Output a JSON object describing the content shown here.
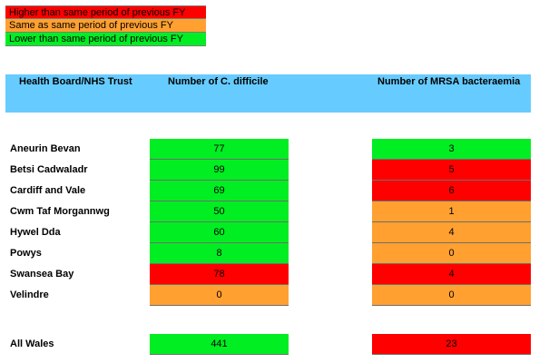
{
  "colors": {
    "red": "#ff0000",
    "orange": "#ffa030",
    "green": "#00ee22",
    "header_blue": "#66ccff"
  },
  "legend": [
    {
      "text": "Higher than same period of previous FY",
      "color": "red"
    },
    {
      "text": "Same as same period of previous FY",
      "color": "orange"
    },
    {
      "text": "Lower than same period of previous FY",
      "color": "green"
    }
  ],
  "table": {
    "headers": {
      "trust": "Health Board/NHS Trust",
      "cdiff": "Number of C. difficile",
      "mrsa": "Number of MRSA bacteraemia"
    },
    "rows": [
      {
        "name": "Aneurin Bevan",
        "cdiff": "77",
        "cdiff_color": "green",
        "mrsa": "3",
        "mrsa_color": "green"
      },
      {
        "name": "Betsi Cadwaladr",
        "cdiff": "99",
        "cdiff_color": "green",
        "mrsa": "5",
        "mrsa_color": "red"
      },
      {
        "name": "Cardiff and Vale",
        "cdiff": "69",
        "cdiff_color": "green",
        "mrsa": "6",
        "mrsa_color": "red"
      },
      {
        "name": "Cwm Taf Morgannwg",
        "cdiff": "50",
        "cdiff_color": "green",
        "mrsa": "1",
        "mrsa_color": "orange"
      },
      {
        "name": "Hywel Dda",
        "cdiff": "60",
        "cdiff_color": "green",
        "mrsa": "4",
        "mrsa_color": "orange"
      },
      {
        "name": "Powys",
        "cdiff": "8",
        "cdiff_color": "green",
        "mrsa": "0",
        "mrsa_color": "orange"
      },
      {
        "name": "Swansea Bay",
        "cdiff": "78",
        "cdiff_color": "red",
        "mrsa": "4",
        "mrsa_color": "red"
      },
      {
        "name": "Velindre",
        "cdiff": "0",
        "cdiff_color": "orange",
        "mrsa": "0",
        "mrsa_color": "orange"
      }
    ],
    "total": {
      "name": "All Wales",
      "cdiff": "441",
      "cdiff_color": "green",
      "mrsa": "23",
      "mrsa_color": "red"
    }
  }
}
